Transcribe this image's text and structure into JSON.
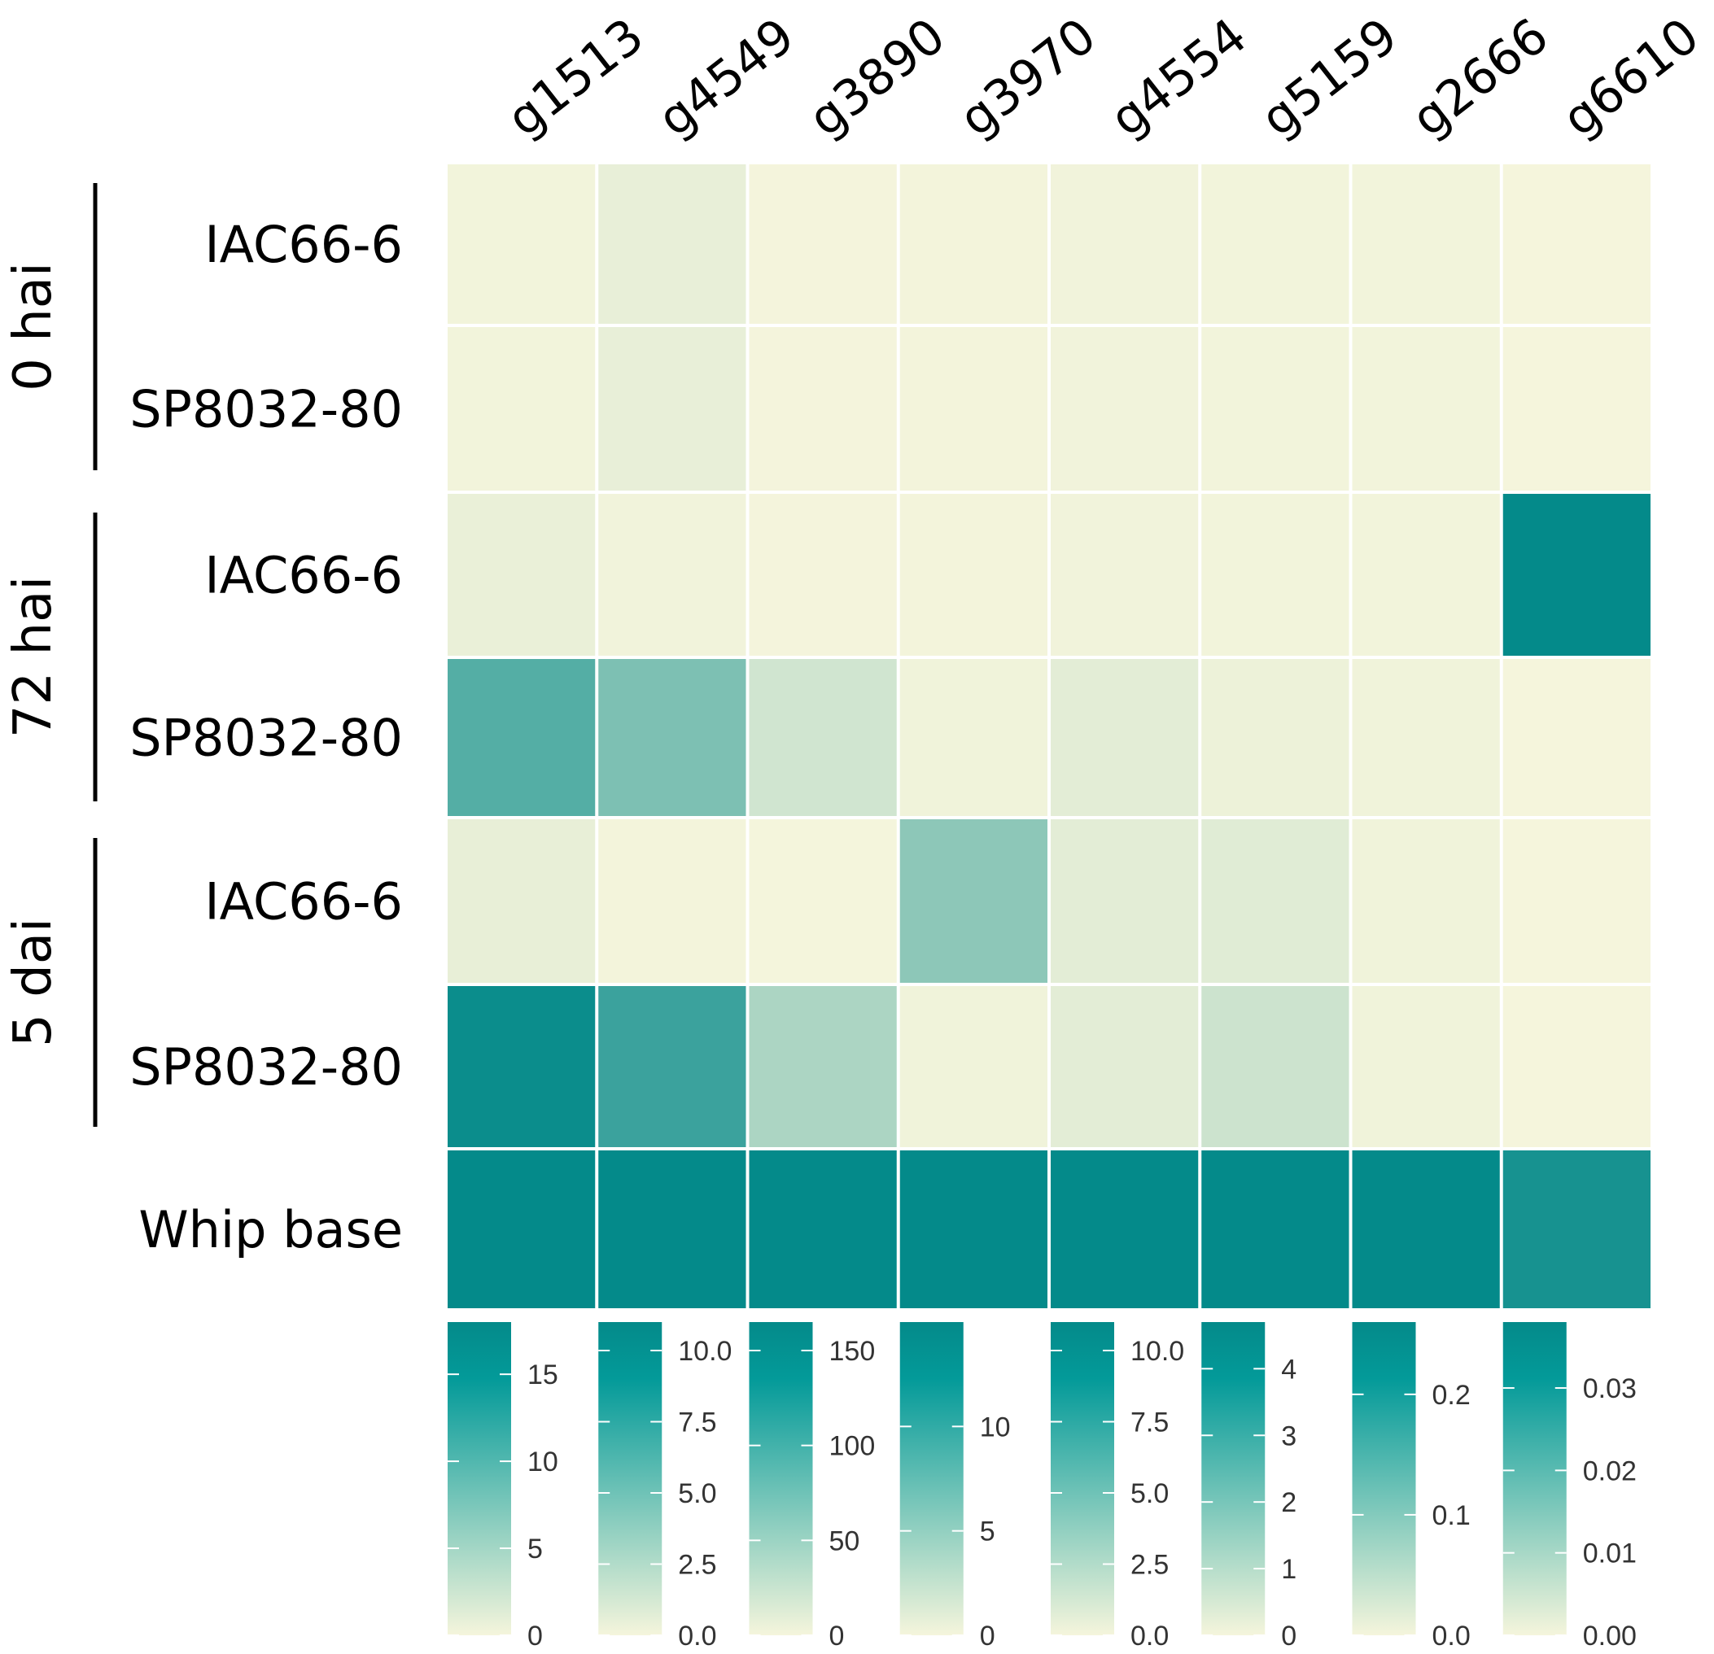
{
  "chart_data": {
    "type": "heatmap",
    "title": "",
    "xlabel": "",
    "ylabel": "",
    "genes": [
      "g1513",
      "g4549",
      "g3890",
      "g3970",
      "g4554",
      "g5159",
      "g2666",
      "g6610"
    ],
    "rows": [
      {
        "group": "0 hai",
        "label": "IAC66-6"
      },
      {
        "group": "0 hai",
        "label": "SP8032-80"
      },
      {
        "group": "72 hai",
        "label": "IAC66-6"
      },
      {
        "group": "72 hai",
        "label": "SP8032-80"
      },
      {
        "group": "5 dai",
        "label": "IAC66-6"
      },
      {
        "group": "5 dai",
        "label": "SP8032-80"
      },
      {
        "group": "",
        "label": "Whip base"
      }
    ],
    "groups": [
      {
        "label": "0 hai",
        "rows": [
          0,
          1
        ]
      },
      {
        "label": "72 hai",
        "rows": [
          2,
          3
        ]
      },
      {
        "label": "5 dai",
        "rows": [
          4,
          5
        ]
      }
    ],
    "values": [
      [
        0.2,
        0.6,
        1.0,
        0.1,
        0.2,
        0.05,
        0.003,
        0.0
      ],
      [
        0.2,
        0.6,
        1.0,
        0.1,
        0.2,
        0.05,
        0.003,
        0.0
      ],
      [
        0.8,
        0.2,
        1.0,
        0.1,
        0.2,
        0.05,
        0.003,
        0.038
      ],
      [
        12.0,
        5.5,
        25.0,
        0.3,
        0.8,
        0.15,
        0.005,
        0.0
      ],
      [
        1.0,
        0.1,
        0.5,
        6.5,
        0.8,
        0.4,
        0.005,
        0.0
      ],
      [
        17.5,
        8.5,
        50.0,
        0.3,
        0.8,
        0.8,
        0.005,
        0.0
      ],
      [
        18.0,
        11.0,
        165.0,
        15.0,
        11.0,
        4.7,
        0.26,
        0.035
      ]
    ],
    "scales": [
      {
        "gene": "g1513",
        "min": 0,
        "max": 18,
        "ticks": [
          0,
          5,
          10,
          15
        ],
        "tick_labels": [
          "0",
          "5",
          "10",
          "15"
        ]
      },
      {
        "gene": "g4549",
        "min": 0,
        "max": 11,
        "ticks": [
          0,
          2.5,
          5,
          7.5,
          10
        ],
        "tick_labels": [
          "0.0",
          "2.5",
          "5.0",
          "7.5",
          "10.0"
        ]
      },
      {
        "gene": "g3890",
        "min": 0,
        "max": 165,
        "ticks": [
          0,
          50,
          100,
          150
        ],
        "tick_labels": [
          "0",
          "50",
          "100",
          "150"
        ]
      },
      {
        "gene": "g3970",
        "min": 0,
        "max": 15,
        "ticks": [
          0,
          5,
          10
        ],
        "tick_labels": [
          "0",
          "5",
          "10"
        ]
      },
      {
        "gene": "g4554",
        "min": 0,
        "max": 11,
        "ticks": [
          0,
          2.5,
          5,
          7.5,
          10
        ],
        "tick_labels": [
          "0.0",
          "2.5",
          "5.0",
          "7.5",
          "10.0"
        ]
      },
      {
        "gene": "g5159",
        "min": 0,
        "max": 4.7,
        "ticks": [
          0,
          1,
          2,
          3,
          4
        ],
        "tick_labels": [
          "0",
          "1",
          "2",
          "3",
          "4"
        ]
      },
      {
        "gene": "g2666",
        "min": 0,
        "max": 0.26,
        "ticks": [
          0,
          0.1,
          0.2
        ],
        "tick_labels": [
          "0.0",
          "0.1",
          "0.2"
        ]
      },
      {
        "gene": "g6610",
        "min": 0,
        "max": 0.038,
        "ticks": [
          0,
          0.01,
          0.02,
          0.03
        ],
        "tick_labels": [
          "0.00",
          "0.01",
          "0.02",
          "0.03"
        ]
      }
    ],
    "colors": {
      "low": "#f5f5dc",
      "high": "#048a8a",
      "bright": "#039a99"
    }
  }
}
